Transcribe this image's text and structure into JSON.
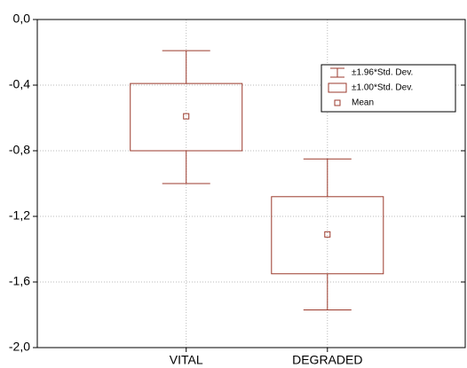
{
  "chart_data": {
    "type": "box",
    "categories": [
      "VITAL",
      "DEGRADED"
    ],
    "series": [
      {
        "name": "±1.96*Std. Dev.",
        "color": "#9b3a2c",
        "upper": [
          -0.19,
          -0.85
        ],
        "lower": [
          -1.0,
          -1.77
        ]
      },
      {
        "name": "±1.00*Std. Dev.",
        "color": "#9b3a2c",
        "upper": [
          -0.39,
          -1.08
        ],
        "lower": [
          -0.8,
          -1.55
        ]
      },
      {
        "name": "Mean",
        "color": "#9b3a2c",
        "values": [
          -0.59,
          -1.31
        ]
      }
    ],
    "ylim": [
      -2.0,
      0.0
    ],
    "yticks": [
      {
        "value": 0.0,
        "label": "0,0"
      },
      {
        "value": -0.4,
        "label": "-0,4"
      },
      {
        "value": -0.8,
        "label": "-0,8"
      },
      {
        "value": -1.2,
        "label": "-1,2"
      },
      {
        "value": -1.6,
        "label": "-1,6"
      },
      {
        "value": -2.0,
        "label": "-2,0"
      }
    ],
    "grid": true
  }
}
